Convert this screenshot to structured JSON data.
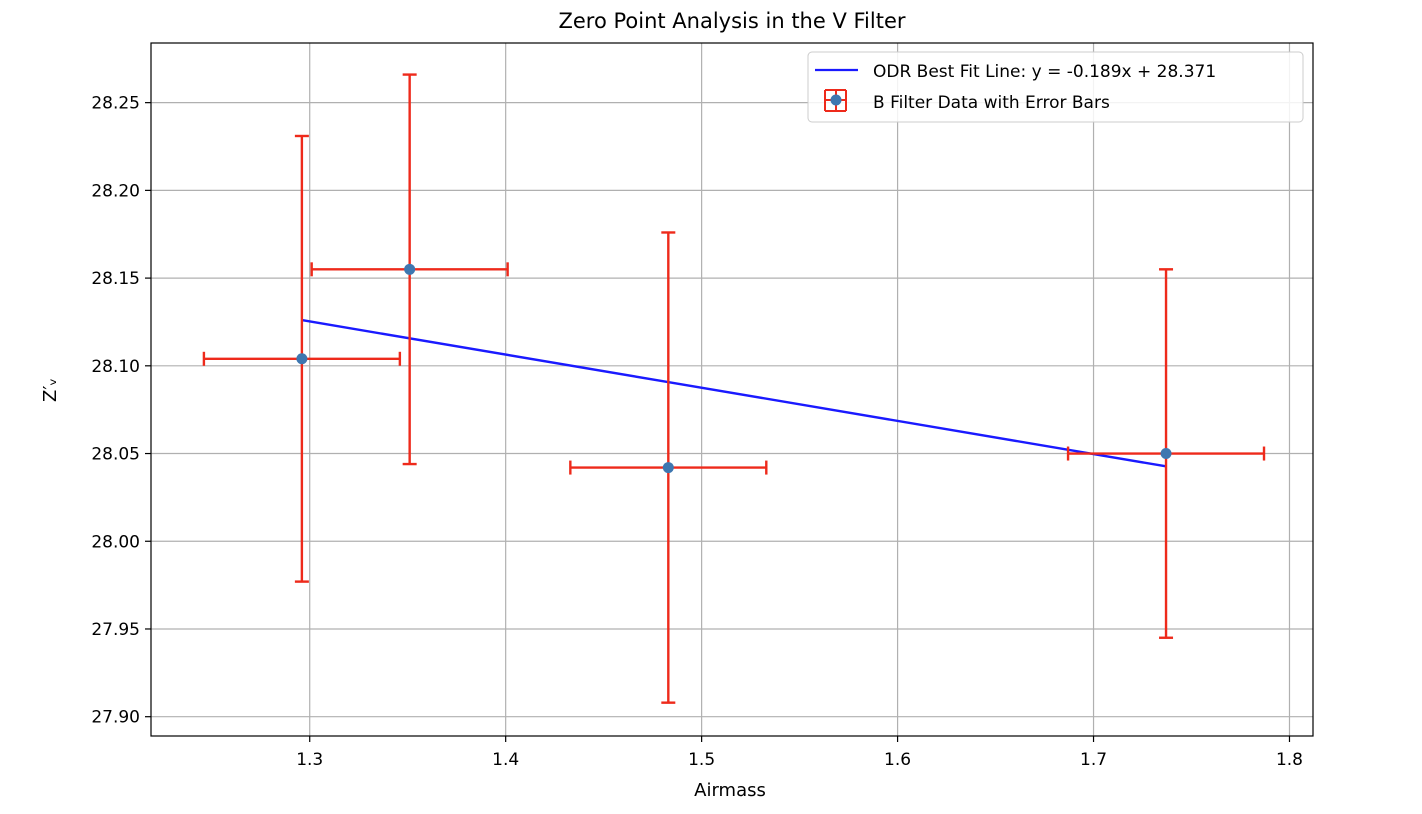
{
  "chart_data": {
    "type": "scatter",
    "title": "Zero Point Analysis in the V Filter",
    "xlabel": "Airmass",
    "ylabel": "Z′ᵥ",
    "xlim": [
      1.219,
      1.812
    ],
    "ylim": [
      27.889,
      28.284
    ],
    "x_ticks": [
      1.3,
      1.4,
      1.5,
      1.6,
      1.7,
      1.8
    ],
    "x_tick_labels": [
      "1.3",
      "1.4",
      "1.5",
      "1.6",
      "1.7",
      "1.8"
    ],
    "y_ticks": [
      27.9,
      27.95,
      28.0,
      28.05,
      28.1,
      28.15,
      28.2,
      28.25
    ],
    "y_tick_labels": [
      "27.90",
      "27.95",
      "28.00",
      "28.05",
      "28.10",
      "28.15",
      "28.20",
      "28.25"
    ],
    "grid": true,
    "legend_position": "top-right",
    "series": [
      {
        "name": "B Filter Data with Error Bars",
        "kind": "errorbar",
        "marker_color": "#3e77b0",
        "error_color": "#ee2a1b",
        "points": [
          {
            "x": 1.296,
            "y": 28.104,
            "xerr": 0.05,
            "yerr": 0.127
          },
          {
            "x": 1.351,
            "y": 28.155,
            "xerr": 0.05,
            "yerr": 0.111
          },
          {
            "x": 1.483,
            "y": 28.042,
            "xerr": 0.05,
            "yerr": 0.134
          },
          {
            "x": 1.737,
            "y": 28.05,
            "xerr": 0.05,
            "yerr": 0.105
          }
        ]
      },
      {
        "name": "ODR Best Fit Line: y = -0.189x + 28.371",
        "kind": "line",
        "color": "#1a1aff",
        "slope": -0.189,
        "intercept": 28.371,
        "x_range": [
          1.296,
          1.737
        ]
      }
    ]
  }
}
